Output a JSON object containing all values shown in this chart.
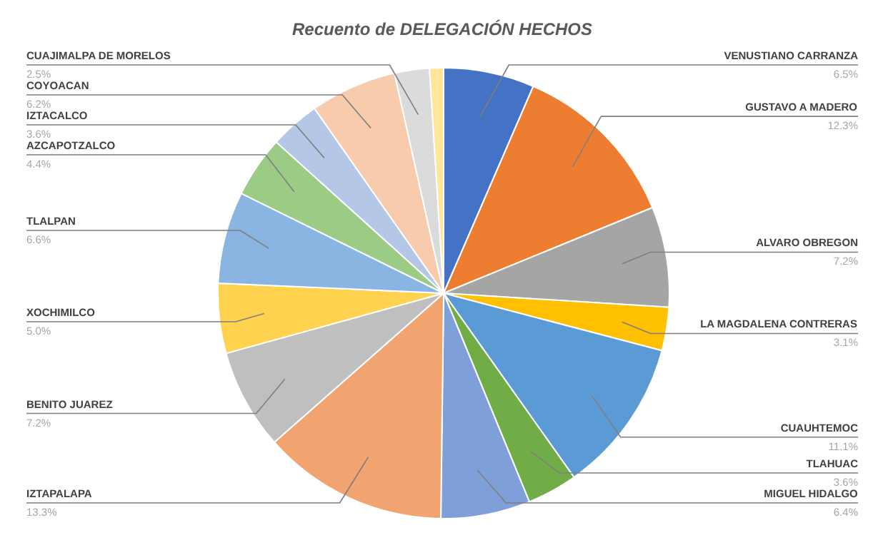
{
  "chart_data": {
    "type": "pie",
    "title": "Recuento de DELEGACIÓN HECHOS",
    "categories": [
      "VENUSTIANO CARRANZA",
      "GUSTAVO A MADERO",
      "ALVARO OBREGON",
      "LA MAGDALENA CONTRERAS",
      "CUAUHTEMOC",
      "TLAHUAC",
      "MIGUEL HIDALGO",
      "IZTAPALAPA",
      "BENITO JUAREZ",
      "XOCHIMILCO",
      "TLALPAN",
      "AZCAPOTZALCO",
      "IZTACALCO",
      "COYOACAN",
      "CUAJIMALPA DE MORELOS",
      null
    ],
    "values": [
      6.5,
      12.3,
      7.2,
      3.1,
      11.1,
      3.6,
      6.4,
      13.3,
      7.2,
      5.0,
      6.6,
      4.4,
      3.6,
      6.2,
      2.5,
      1.0
    ],
    "value_labels": [
      "6.5%",
      "12.3%",
      "7.2%",
      "3.1%",
      "11.1%",
      "3.6%",
      "6.4%",
      "13.3%",
      "7.2%",
      "5.0%",
      "6.6%",
      "4.4%",
      "3.6%",
      "6.2%",
      "2.5%",
      null
    ],
    "colors": [
      "#4472c4",
      "#ed7d31",
      "#a5a5a5",
      "#ffc000",
      "#5b9bd5",
      "#70ad47",
      "#7f9fd9",
      "#f1a470",
      "#bfbfbf",
      "#ffd24f",
      "#8ab4e2",
      "#9ccb85",
      "#b4c7e7",
      "#f8cbad",
      "#dbdbdb",
      "#ffe699"
    ]
  }
}
